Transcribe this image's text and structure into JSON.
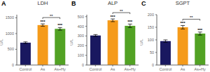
{
  "chart_data": [
    {
      "type": "bar",
      "title": "LDH",
      "ylabel": "U/L",
      "categories": [
        "Control",
        "As",
        "As+Hy"
      ],
      "values": [
        710,
        1270,
        1150
      ],
      "errors": [
        28,
        38,
        42
      ],
      "colors": [
        "#191860",
        "#F59B1A",
        "#52A224"
      ],
      "ylim": [
        0,
        1600
      ],
      "yticks": [
        0,
        500,
        1000,
        1500
      ],
      "grid": false,
      "annotations": [
        {
          "text": "A"
        },
        {
          "text": "***",
          "category": "As"
        },
        {
          "text": "***",
          "category": "As+Hy"
        },
        {
          "text": "**",
          "categories": [
            "As",
            "As+Hy"
          ]
        }
      ]
    },
    {
      "type": "bar",
      "title": "ALP",
      "ylabel": "U/L",
      "categories": [
        "Control",
        "As",
        "As+Hy"
      ],
      "values": [
        305,
        462,
        405
      ],
      "errors": [
        10,
        14,
        18
      ],
      "colors": [
        "#191860",
        "#F59B1A",
        "#52A224"
      ],
      "ylim": [
        0,
        520
      ],
      "yticks": [
        0,
        100,
        200,
        300,
        400,
        500
      ],
      "grid": false,
      "annotations": [
        {
          "text": "B"
        },
        {
          "text": "***",
          "category": "As"
        },
        {
          "text": "***",
          "category": "As+Hy"
        },
        {
          "text": "**",
          "categories": [
            "As",
            "As+Hy"
          ]
        }
      ]
    },
    {
      "type": "bar",
      "title": "SGPT",
      "ylabel": "U/L",
      "categories": [
        "Control",
        "As",
        "As+Hy"
      ],
      "values": [
        95,
        150,
        125
      ],
      "errors": [
        5,
        7,
        6
      ],
      "colors": [
        "#191860",
        "#F59B1A",
        "#52A224"
      ],
      "ylim": [
        0,
        200
      ],
      "yticks": [
        0,
        50,
        100,
        150,
        200
      ],
      "grid": false,
      "annotations": [
        {
          "text": "C"
        },
        {
          "text": "***",
          "category": "As"
        },
        {
          "text": "***",
          "category": "As+Hy"
        },
        {
          "text": "**",
          "categories": [
            "As",
            "As+Hy"
          ]
        }
      ]
    }
  ]
}
